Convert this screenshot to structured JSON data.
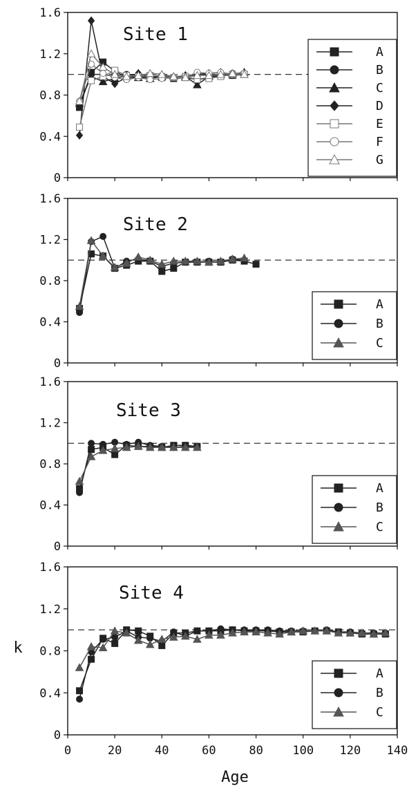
{
  "figure": {
    "xlabel": "Age",
    "ylabel": "k"
  },
  "chart_data": [
    {
      "type": "line",
      "title": "Site 1",
      "xlim": [
        0,
        140
      ],
      "ylim": [
        0,
        1.6
      ],
      "yticks": [
        "0",
        "0.4",
        "0.8",
        "1.2",
        "1.6"
      ],
      "xticks": [],
      "reference_line": 1.0,
      "legend_position": "right",
      "series": [
        {
          "name": "A",
          "marker": "square-filled",
          "color": "#222222",
          "x": [
            5,
            10,
            15,
            20,
            25,
            30,
            35,
            40,
            45,
            50,
            55,
            60,
            65,
            70,
            75
          ],
          "y": [
            0.68,
            1.02,
            1.12,
            1.03,
            0.97,
            0.97,
            0.98,
            0.97,
            0.96,
            0.97,
            0.95,
            0.97,
            0.99,
            0.99,
            1.0
          ]
        },
        {
          "name": "B",
          "marker": "circle-filled",
          "color": "#222222",
          "x": [
            5,
            10,
            15,
            20,
            25,
            30,
            35,
            40,
            45,
            50,
            55,
            60,
            65,
            70,
            75
          ],
          "y": [
            0.7,
            1.0,
            1.0,
            0.98,
            1.0,
            0.99,
            0.98,
            0.98,
            0.97,
            0.98,
            1.0,
            1.0,
            1.0,
            1.01,
            1.01
          ]
        },
        {
          "name": "C",
          "marker": "triangle-filled",
          "color": "#222222",
          "x": [
            5,
            10,
            15,
            20,
            25,
            30,
            35,
            40,
            45,
            50,
            55,
            60,
            65,
            70,
            75
          ],
          "y": [
            0.72,
            0.98,
            0.93,
            0.96,
            0.99,
            0.97,
            0.96,
            0.98,
            0.98,
            0.98,
            0.9,
            0.98,
            1.0,
            1.0,
            1.02
          ]
        },
        {
          "name": "D",
          "marker": "diamond-filled",
          "color": "#222222",
          "x": [
            5,
            10,
            15,
            20,
            25,
            30,
            35,
            40,
            45,
            50,
            55,
            60,
            65,
            70,
            75
          ],
          "y": [
            0.41,
            1.52,
            0.98,
            0.91,
            0.97,
            1.01,
            0.98,
            0.99,
            0.97,
            0.99,
            1.0,
            1.01,
            1.02,
            1.0,
            1.01
          ]
        },
        {
          "name": "E",
          "marker": "square-open",
          "color": "#777777",
          "x": [
            5,
            10,
            15,
            20,
            25,
            30,
            35,
            40,
            45,
            50,
            55,
            60,
            65,
            70,
            75
          ],
          "y": [
            0.49,
            0.94,
            0.98,
            1.04,
            0.99,
            0.98,
            0.99,
            0.98,
            0.97,
            0.98,
            0.95,
            0.96,
            0.98,
            1.0,
            1.0
          ]
        },
        {
          "name": "F",
          "marker": "circle-open",
          "color": "#777777",
          "x": [
            5,
            10,
            15,
            20,
            25,
            30,
            35,
            40,
            45,
            50,
            55,
            60,
            65,
            70,
            75
          ],
          "y": [
            0.74,
            1.1,
            1.01,
            0.97,
            0.95,
            0.97,
            0.95,
            0.96,
            0.97,
            0.97,
            1.02,
            1.01,
            1.02,
            1.0,
            1.01
          ]
        },
        {
          "name": "G",
          "marker": "triangle-open",
          "color": "#777777",
          "x": [
            5,
            10,
            15,
            20,
            25,
            30,
            35,
            40,
            45,
            50,
            55,
            60,
            65,
            70,
            75
          ],
          "y": [
            0.74,
            1.2,
            1.07,
            1.0,
            0.98,
            0.99,
            1.01,
            1.0,
            0.98,
            0.97,
            0.99,
            0.99,
            1.0,
            1.01,
            1.0
          ]
        }
      ]
    },
    {
      "type": "line",
      "title": "Site 2",
      "xlim": [
        0,
        140
      ],
      "ylim": [
        0,
        1.6
      ],
      "yticks": [
        "0",
        "0.4",
        "0.8",
        "1.2",
        "1.6"
      ],
      "xticks": [],
      "reference_line": 1.0,
      "legend_position": "bottom-right",
      "series": [
        {
          "name": "A",
          "marker": "square-filled",
          "color": "#222222",
          "x": [
            5,
            10,
            15,
            20,
            25,
            30,
            35,
            40,
            45,
            50,
            55,
            60,
            65,
            70,
            75,
            80
          ],
          "y": [
            0.53,
            1.06,
            1.04,
            0.92,
            0.95,
            0.99,
            0.99,
            0.89,
            0.92,
            0.98,
            0.98,
            0.98,
            0.98,
            1.0,
            0.99,
            0.96
          ]
        },
        {
          "name": "B",
          "marker": "circle-filled",
          "color": "#222222",
          "x": [
            5,
            10,
            15,
            20,
            25,
            30,
            35,
            40,
            45,
            50,
            55,
            60,
            65,
            70,
            75
          ],
          "y": [
            0.49,
            1.18,
            1.23,
            0.92,
            0.99,
            1.01,
            0.99,
            0.94,
            0.97,
            0.98,
            0.98,
            0.99,
            0.98,
            1.01,
            1.0
          ]
        },
        {
          "name": "C",
          "marker": "triangle-filled",
          "color": "#555555",
          "x": [
            5,
            10,
            15,
            20,
            25,
            30,
            35,
            40,
            45,
            50,
            55,
            60,
            65,
            70,
            75
          ],
          "y": [
            0.55,
            1.19,
            1.04,
            0.93,
            0.97,
            1.03,
            1.0,
            0.96,
            0.99,
            0.99,
            0.99,
            0.98,
            0.99,
            1.01,
            1.02
          ]
        }
      ]
    },
    {
      "type": "line",
      "title": "Site 3",
      "xlim": [
        0,
        140
      ],
      "ylim": [
        0,
        1.6
      ],
      "yticks": [
        "0",
        "0.4",
        "0.8",
        "1.2",
        "1.6"
      ],
      "xticks": [],
      "reference_line": 1.0,
      "legend_position": "bottom-right",
      "series": [
        {
          "name": "A",
          "marker": "square-filled",
          "color": "#222222",
          "x": [
            5,
            10,
            15,
            20,
            25,
            30,
            35,
            40,
            45,
            50,
            55
          ],
          "y": [
            0.56,
            0.94,
            0.96,
            0.89,
            0.98,
            0.97,
            0.97,
            0.96,
            0.98,
            0.98,
            0.97
          ]
        },
        {
          "name": "B",
          "marker": "circle-filled",
          "color": "#222222",
          "x": [
            5,
            10,
            15,
            20,
            25,
            30,
            35,
            40,
            45,
            50,
            55
          ],
          "y": [
            0.52,
            1.0,
            0.99,
            1.01,
            0.99,
            1.01,
            0.98,
            0.97,
            0.96,
            0.97,
            0.97
          ]
        },
        {
          "name": "C",
          "marker": "triangle-filled",
          "color": "#555555",
          "x": [
            5,
            10,
            15,
            20,
            25,
            30,
            35,
            40,
            45,
            50,
            55
          ],
          "y": [
            0.63,
            0.87,
            0.93,
            0.95,
            0.96,
            0.97,
            0.96,
            0.96,
            0.96,
            0.96,
            0.96
          ]
        }
      ]
    },
    {
      "type": "line",
      "title": "Site 4",
      "xlim": [
        0,
        140
      ],
      "ylim": [
        0,
        1.6
      ],
      "yticks": [
        "0",
        "0.4",
        "0.8",
        "1.2",
        "1.6"
      ],
      "xticks": [
        "0",
        "20",
        "40",
        "60",
        "80",
        "100",
        "120",
        "140"
      ],
      "reference_line": 1.0,
      "legend_position": "bottom-right",
      "series": [
        {
          "name": "A",
          "marker": "square-filled",
          "color": "#222222",
          "x": [
            5,
            10,
            15,
            20,
            25,
            30,
            35,
            40,
            45,
            50,
            55,
            60,
            65,
            70,
            75,
            80,
            85,
            90,
            95,
            100,
            105,
            110,
            115,
            120,
            125,
            130,
            135
          ],
          "y": [
            0.42,
            0.72,
            0.92,
            0.87,
            1.0,
            0.99,
            0.94,
            0.85,
            0.97,
            0.97,
            0.99,
            0.99,
            0.99,
            1.0,
            0.99,
            0.99,
            0.99,
            0.98,
            0.98,
            0.98,
            0.99,
            0.99,
            0.98,
            0.97,
            0.96,
            0.96,
            0.96
          ]
        },
        {
          "name": "B",
          "marker": "circle-filled",
          "color": "#222222",
          "x": [
            5,
            10,
            15,
            20,
            25,
            30,
            35,
            40,
            45,
            50,
            55,
            60,
            65,
            70,
            75,
            80,
            85,
            90,
            95,
            100,
            105,
            110,
            115,
            120,
            125,
            130,
            135
          ],
          "y": [
            0.34,
            0.79,
            0.91,
            0.93,
            0.99,
            0.93,
            0.92,
            0.89,
            0.98,
            0.94,
            0.99,
            0.99,
            1.01,
            1.0,
            1.0,
            1.0,
            1.0,
            0.99,
            0.99,
            0.99,
            0.99,
            1.0,
            0.98,
            0.98,
            0.97,
            0.97,
            0.97
          ]
        },
        {
          "name": "C",
          "marker": "triangle-filled",
          "color": "#555555",
          "x": [
            5,
            10,
            15,
            20,
            25,
            30,
            35,
            40,
            45,
            50,
            55,
            60,
            65,
            70,
            75,
            80,
            85,
            90,
            95,
            100,
            105,
            110,
            115,
            120,
            125,
            130,
            135
          ],
          "y": [
            0.64,
            0.84,
            0.83,
            0.99,
            0.97,
            0.9,
            0.86,
            0.91,
            0.93,
            0.94,
            0.91,
            0.95,
            0.95,
            0.97,
            0.98,
            0.98,
            0.97,
            0.96,
            0.98,
            0.99,
            0.99,
            0.99,
            0.97,
            0.97,
            0.97,
            0.96,
            0.97
          ]
        }
      ]
    }
  ]
}
